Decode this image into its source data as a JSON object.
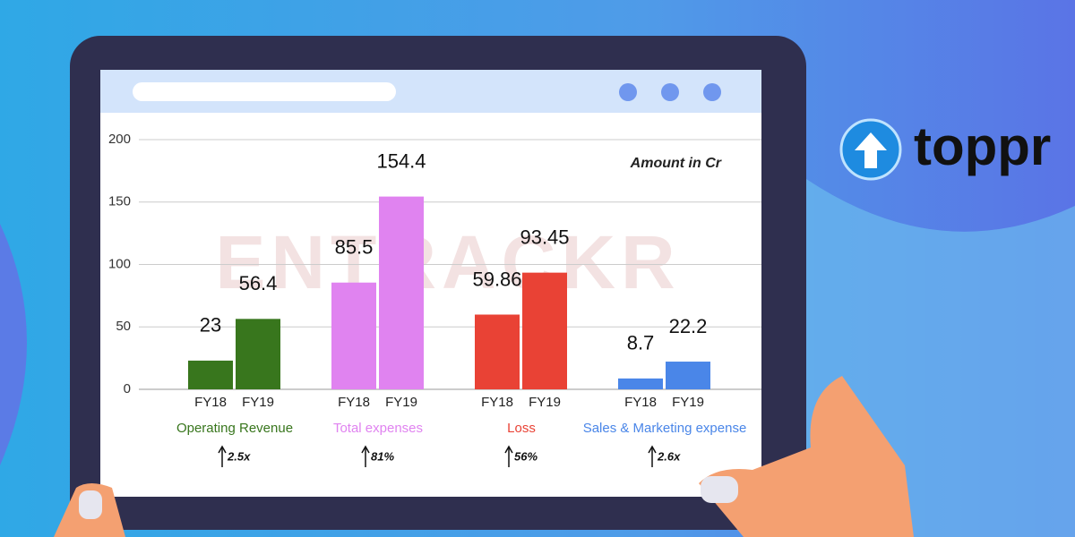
{
  "brand": "toppr",
  "chart_data": {
    "type": "bar",
    "watermark": "ENTRACKR",
    "note": "Amount in Cr",
    "ylim": [
      0,
      200
    ],
    "yticks": [
      0,
      50,
      100,
      150,
      200
    ],
    "grid": true,
    "groups": [
      {
        "name": "Operating Revenue",
        "color": "#38761d",
        "categories": [
          "FY18",
          "FY19"
        ],
        "values": [
          23,
          56.4
        ],
        "growth": "2.5x"
      },
      {
        "name": "Total expenses",
        "color": "#e083f0",
        "categories": [
          "FY18",
          "FY19"
        ],
        "values": [
          85.5,
          154.4
        ],
        "growth": "81%"
      },
      {
        "name": "Loss",
        "color": "#e94235",
        "categories": [
          "FY18",
          "FY19"
        ],
        "values": [
          59.86,
          93.45
        ],
        "growth": "56%"
      },
      {
        "name": "Sales & Marketing expense",
        "color": "#4a86e8",
        "categories": [
          "FY18",
          "FY19"
        ],
        "values": [
          8.7,
          22.2
        ],
        "growth": "2.6x"
      }
    ]
  }
}
